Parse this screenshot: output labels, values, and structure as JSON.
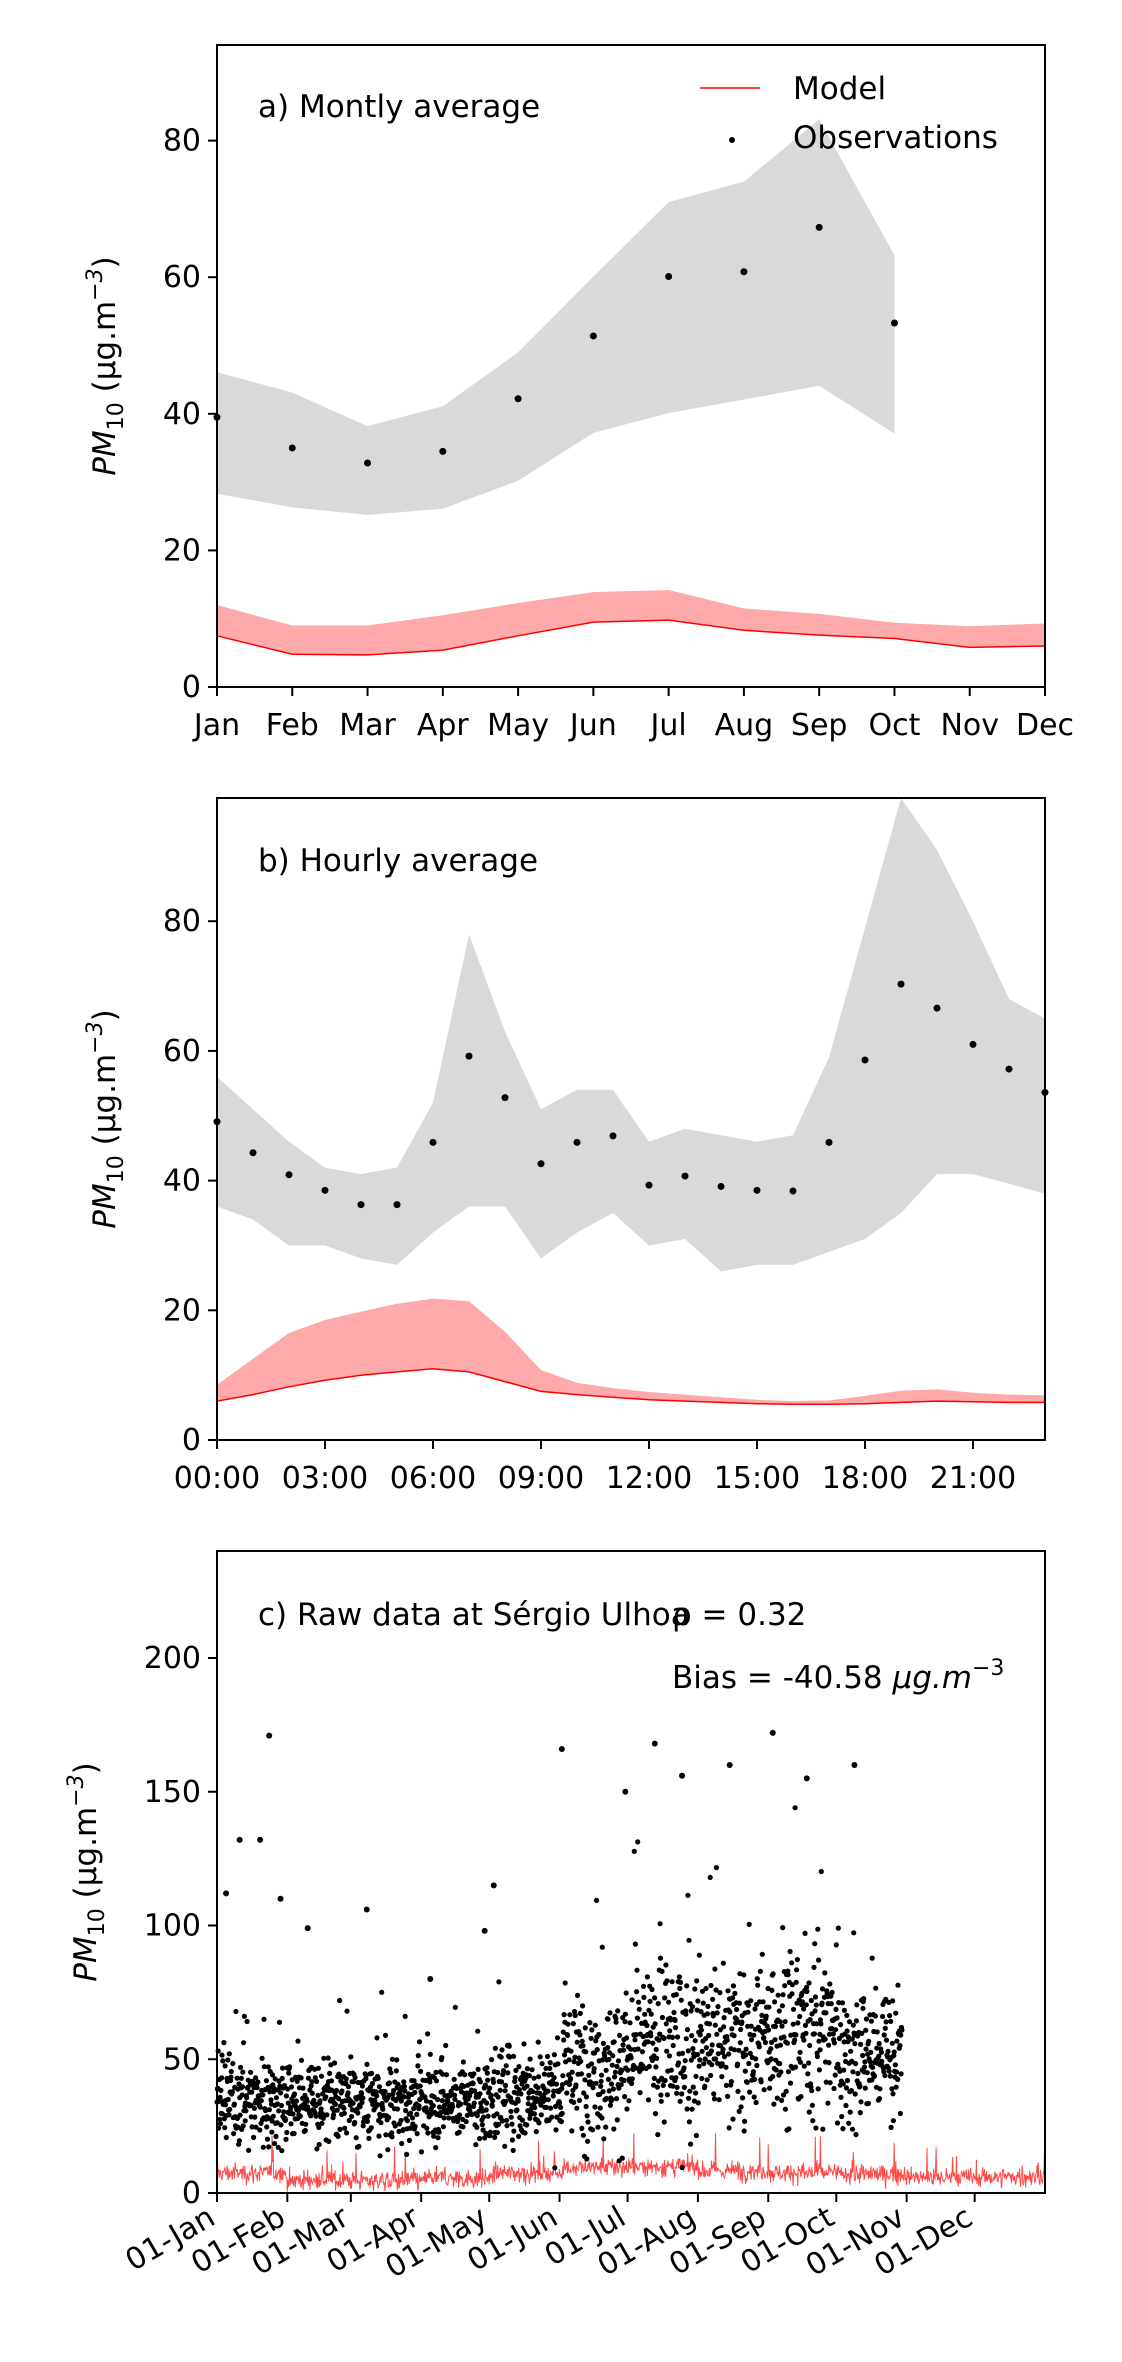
{
  "colors": {
    "model_line": "#ff0000",
    "model_band": "#ffaaaa",
    "obs_band": "#d9d9d9",
    "obs_points": "#000000",
    "raw_model": "#ff2a2a"
  },
  "chart_data": [
    {
      "type": "line",
      "annotation": "a) Montly average",
      "ylabel": "PM10 (µg.m⁻³)",
      "ylabel_parts": {
        "base": "PM",
        "sub": "10",
        "unit": " (µg.m",
        "sup": "−3",
        "close": ")"
      },
      "xlim": [
        0,
        11
      ],
      "ylim": [
        0,
        94
      ],
      "yticks": [
        0,
        20,
        40,
        60,
        80
      ],
      "categories": [
        "Jan",
        "Feb",
        "Mar",
        "Apr",
        "May",
        "Jun",
        "Jul",
        "Aug",
        "Sep",
        "Oct",
        "Nov",
        "Dec"
      ],
      "legend": {
        "position": "top-right",
        "model": "Model",
        "observations": "Observations"
      },
      "model": {
        "name": "Model",
        "line": [
          7.5,
          4.8,
          4.7,
          5.4,
          7.5,
          9.5,
          9.8,
          8.3,
          7.6,
          7.1,
          5.8,
          6.0
        ],
        "band_low": [
          7.5,
          4.8,
          4.7,
          5.4,
          7.5,
          9.5,
          9.8,
          8.3,
          7.6,
          7.1,
          5.8,
          6.0
        ],
        "band_high": [
          12.0,
          9.0,
          9.0,
          10.5,
          12.3,
          13.9,
          14.2,
          11.5,
          10.7,
          9.4,
          8.9,
          9.3
        ]
      },
      "observations": {
        "name": "Observations",
        "x": [
          0,
          1,
          2,
          3,
          4,
          5,
          6,
          7,
          8,
          9
        ],
        "values": [
          39.5,
          35.0,
          32.8,
          34.5,
          42.2,
          51.4,
          60.1,
          60.8,
          67.3,
          53.3
        ],
        "band_low": [
          28.3,
          26.3,
          25.2,
          26.1,
          30.2,
          37.2,
          40.1,
          42.1,
          44.1,
          37.1
        ],
        "band_high": [
          46.1,
          43.1,
          38.2,
          41.1,
          49.0,
          60.1,
          71.0,
          74.0,
          83.1,
          63.2
        ]
      }
    },
    {
      "type": "line",
      "annotation": "b) Hourly average",
      "ylabel": "PM10 (µg.m⁻³)",
      "ylabel_parts": {
        "base": "PM",
        "sub": "10",
        "unit": " (µg.m",
        "sup": "−3",
        "close": ")"
      },
      "xlim": [
        0,
        23
      ],
      "ylim": [
        0,
        99
      ],
      "yticks": [
        0,
        20,
        40,
        60,
        80
      ],
      "xtick_positions": [
        0,
        3,
        6,
        9,
        12,
        15,
        18,
        21
      ],
      "xtick_labels": [
        "00:00",
        "03:00",
        "06:00",
        "09:00",
        "12:00",
        "15:00",
        "18:00",
        "21:00"
      ],
      "model": {
        "name": "Model",
        "line": [
          6.0,
          7.0,
          8.2,
          9.2,
          10.0,
          10.5,
          11.0,
          10.5,
          9.0,
          7.5,
          7.0,
          6.6,
          6.2,
          6.0,
          5.8,
          5.6,
          5.5,
          5.5,
          5.6,
          5.8,
          6.0,
          5.9,
          5.8,
          5.8
        ],
        "band_low": [
          6.0,
          7.0,
          8.2,
          9.2,
          10.0,
          10.5,
          11.0,
          10.5,
          9.0,
          7.5,
          7.0,
          6.6,
          6.2,
          6.0,
          5.8,
          5.6,
          5.5,
          5.5,
          5.6,
          5.8,
          6.0,
          5.9,
          5.8,
          5.8
        ],
        "band_high": [
          8.5,
          12.5,
          16.5,
          18.5,
          19.8,
          21.0,
          21.8,
          21.4,
          16.7,
          10.8,
          8.8,
          8.0,
          7.4,
          7.0,
          6.6,
          6.2,
          6.0,
          6.1,
          6.8,
          7.6,
          7.8,
          7.3,
          7.0,
          6.9
        ]
      },
      "observations": {
        "name": "Observations",
        "x": [
          0,
          1,
          2,
          3,
          4,
          5,
          6,
          7,
          8,
          9,
          10,
          11,
          12,
          13,
          14,
          15,
          16,
          17,
          18,
          19,
          20,
          21,
          22,
          23
        ],
        "values": [
          49.1,
          44.3,
          40.9,
          38.5,
          36.3,
          36.3,
          45.9,
          59.2,
          52.8,
          42.6,
          45.9,
          46.9,
          39.3,
          40.7,
          39.1,
          38.5,
          38.4,
          45.9,
          58.6,
          70.3,
          66.6,
          61.0,
          57.2,
          53.6
        ],
        "band_low": [
          36.0,
          34.0,
          30.0,
          30.0,
          28.0,
          27.0,
          32.0,
          36.0,
          36.0,
          28.0,
          32.0,
          35.0,
          30.0,
          31.0,
          26.0,
          27.0,
          27.0,
          29.0,
          31.0,
          35.0,
          41.0,
          41.0,
          39.5,
          38.0
        ],
        "band_high": [
          56.0,
          51.0,
          46.0,
          42.0,
          41.0,
          42.0,
          52.0,
          78.0,
          63.0,
          51.0,
          54.0,
          54.0,
          46.0,
          48.0,
          47.0,
          46.0,
          47.0,
          59.0,
          79.0,
          99.0,
          91.0,
          80.0,
          68.0,
          65.0
        ]
      }
    },
    {
      "type": "scatter",
      "annotation": "c) Raw data at Sérgio Ulhoa",
      "rho_label": "ρ = 0.32",
      "bias_label": "Bias = -40.58",
      "bias_unit_parts": {
        "unit": "µg.m",
        "sup": "−3"
      },
      "ylabel": "PM10 (µg.m⁻³)",
      "ylabel_parts": {
        "base": "PM",
        "sub": "10",
        "unit": " (µg.m",
        "sup": "−3",
        "close": ")"
      },
      "xlim": [
        0,
        365
      ],
      "ylim": [
        0,
        240
      ],
      "yticks": [
        0,
        50,
        100,
        150,
        200
      ],
      "xtick_positions": [
        0,
        31,
        59,
        90,
        120,
        151,
        181,
        212,
        243,
        273,
        304,
        334
      ],
      "xtick_labels": [
        "01-Jan",
        "01-Feb",
        "01-Mar",
        "01-Apr",
        "01-May",
        "01-Jun",
        "01-Jul",
        "01-Aug",
        "01-Sep",
        "01-Oct",
        "01-Nov",
        "01-Dec"
      ],
      "observations": {
        "name": "Observations",
        "monthly_mean": [
          35,
          34,
          33,
          34,
          38,
          48,
          55,
          57,
          62,
          52
        ],
        "monthly_spread": [
          14,
          14,
          12,
          12,
          15,
          22,
          25,
          25,
          28,
          22
        ],
        "last_day": 302,
        "notable_points": [
          {
            "day": 4,
            "value": 112
          },
          {
            "day": 10,
            "value": 132
          },
          {
            "day": 19,
            "value": 132
          },
          {
            "day": 23,
            "value": 171
          },
          {
            "day": 28,
            "value": 110
          },
          {
            "day": 40,
            "value": 99
          },
          {
            "day": 66,
            "value": 106
          },
          {
            "day": 94,
            "value": 80
          },
          {
            "day": 118,
            "value": 98
          },
          {
            "day": 122,
            "value": 115
          },
          {
            "day": 152,
            "value": 166
          },
          {
            "day": 180,
            "value": 150
          },
          {
            "day": 193,
            "value": 168
          },
          {
            "day": 205,
            "value": 156
          },
          {
            "day": 226,
            "value": 160
          },
          {
            "day": 245,
            "value": 172
          },
          {
            "day": 260,
            "value": 155
          },
          {
            "day": 281,
            "value": 160
          }
        ]
      },
      "model": {
        "name": "Model",
        "monthly_mean": [
          7.5,
          4.8,
          4.7,
          5.4,
          7.5,
          9.5,
          9.8,
          8.3,
          7.6,
          7.1,
          5.8,
          6.0
        ]
      }
    }
  ]
}
